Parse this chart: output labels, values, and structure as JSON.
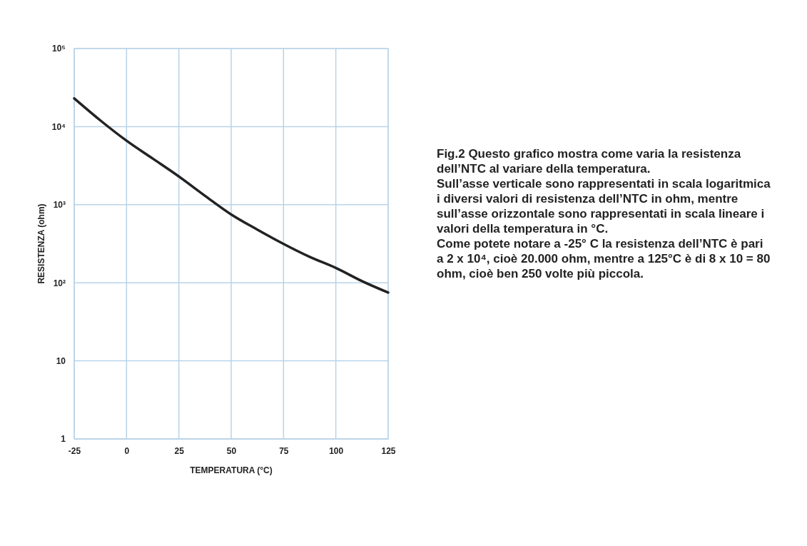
{
  "chart_data": {
    "type": "line",
    "xlabel": "TEMPERATURA (°C)",
    "ylabel": "RESISTENZA (ohm)",
    "x": [
      -25,
      -12.5,
      0,
      12.5,
      25,
      37.5,
      50,
      62.5,
      75,
      87.5,
      100,
      112.5,
      125
    ],
    "series": [
      {
        "color": "#222222",
        "values": [
          23000,
          12000,
          6600,
          3900,
          2300,
          1300,
          750,
          480,
          315,
          215,
          155,
          105,
          75
        ]
      }
    ],
    "log": "y",
    "xlim": [
      -25,
      125
    ],
    "ylim": [
      1,
      100000
    ],
    "xticks": [
      -25,
      0,
      25,
      50,
      75,
      100,
      125
    ],
    "yticks": [
      {
        "value": 1,
        "label": "1"
      },
      {
        "value": 10,
        "label": "10"
      },
      {
        "value": 100,
        "label": "10²"
      },
      {
        "value": 1000,
        "label": "10³"
      },
      {
        "value": 10000,
        "label": "10⁴"
      },
      {
        "value": 100000,
        "label": "10⁵"
      }
    ],
    "grid": true,
    "line_style": "solid",
    "marker": "none",
    "annotations": [
      "Fig.2 Questo grafico mostra come varia la resistenza dell’NTC al variare della temperatura.",
      "Sull’asse verticale sono rappresentati in scala logaritmica i diversi valori di resistenza dell’NTC in ohm, mentre sull’asse orizzontale sono rappresentati in scala lineare i valori della temperatura in °C.",
      "Come potete notare a -25° C la resistenza dell’NTC è pari a 2 x 10⁴, cioè 20.000 ohm, mentre a 125°C è di 8 x 10 = 80 ohm, cioè ben 250 volte più piccola."
    ]
  }
}
